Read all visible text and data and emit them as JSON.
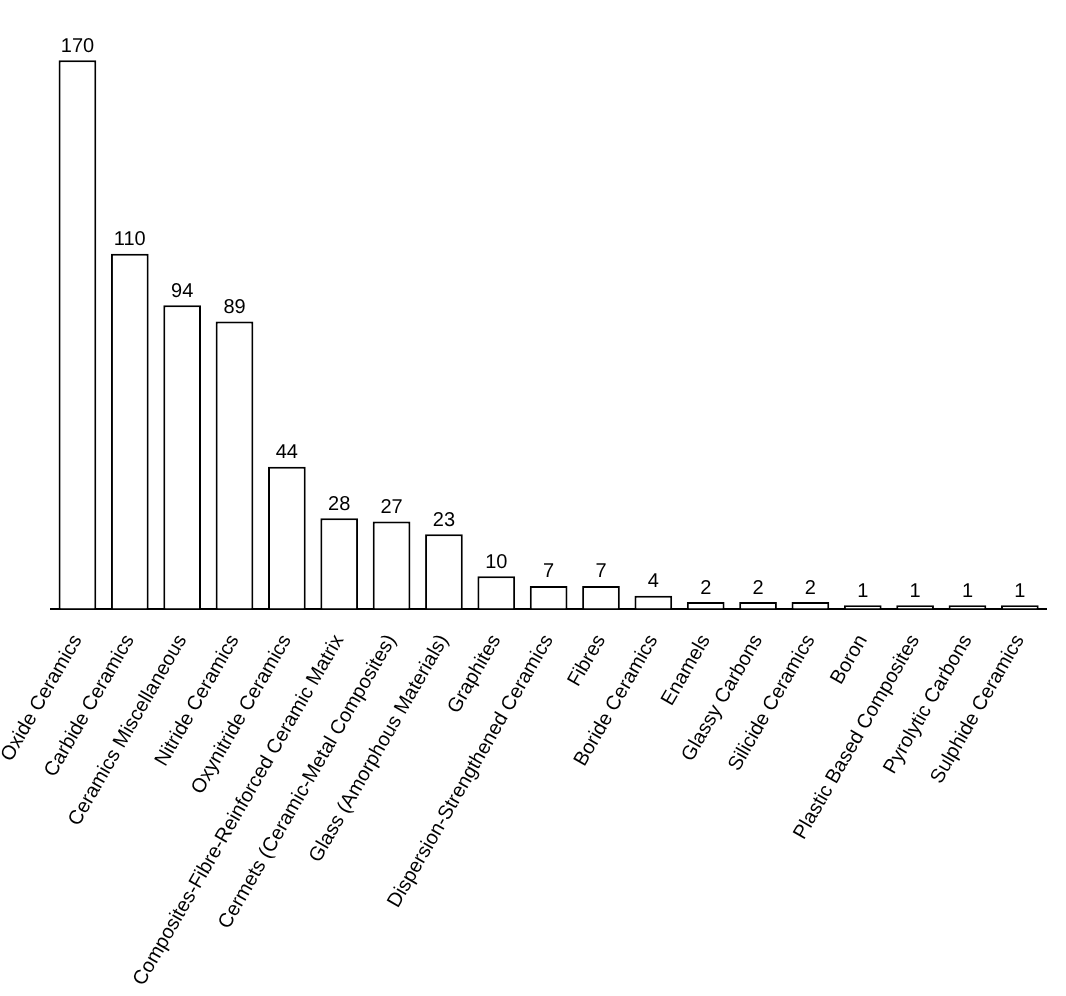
{
  "chart_data": {
    "type": "bar",
    "categories": [
      "Oxide Ceramics",
      "Carbide Ceramics",
      "Ceramics Miscellaneous",
      "Nitride Ceramics",
      "Oxynitride Ceramics",
      "Composites-Fibre-Reinforced Ceramic Matrix",
      "Cermets (Ceramic-Metal Composites)",
      "Glass (Amorphous Materials)",
      "Graphites",
      "Dispersion-Strengthened Ceramics",
      "Fibres",
      "Boride Ceramics",
      "Enamels",
      "Glassy Carbons",
      "Silicide Ceramics",
      "Boron",
      "Plastic Based Composites",
      "Pyrolytic Carbons",
      "Sulphide Ceramics"
    ],
    "values": [
      170,
      110,
      94,
      89,
      44,
      28,
      27,
      23,
      10,
      7,
      7,
      4,
      2,
      2,
      2,
      1,
      1,
      1,
      1
    ],
    "color": "#ffffff",
    "data_labels": true,
    "tick_labels": "x",
    "grid": false,
    "legend": false
  }
}
